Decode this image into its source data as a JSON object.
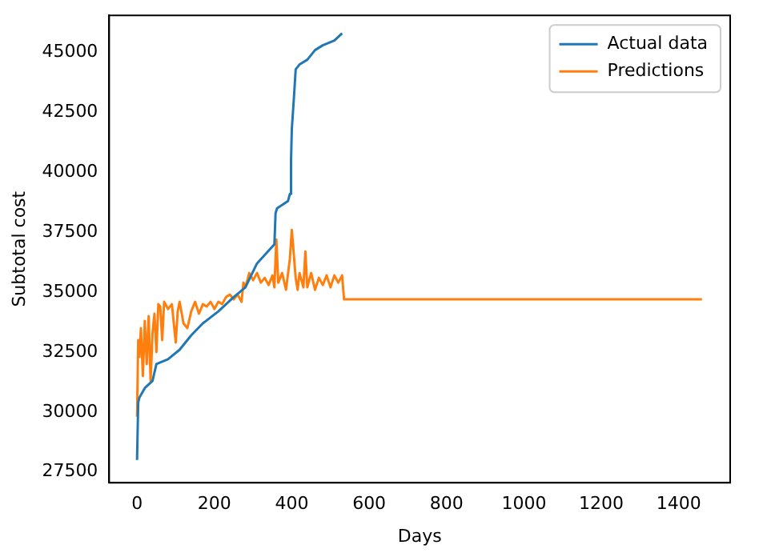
{
  "chart_data": {
    "type": "line",
    "xlabel": "Days",
    "ylabel": "Subtotal cost",
    "xlim": [
      -72,
      1533
    ],
    "ylim": [
      27050,
      46550
    ],
    "xticks": [
      0,
      200,
      400,
      600,
      800,
      1000,
      1200,
      1400
    ],
    "yticks": [
      27500,
      30000,
      32500,
      35000,
      37500,
      40000,
      42500,
      45000
    ],
    "legend": "top right",
    "marker": "none",
    "line_style": "solid",
    "grid": false,
    "series": [
      {
        "name": "Actual data",
        "color": "#1f77b4",
        "x": [
          0,
          3,
          6,
          20,
          40,
          50,
          80,
          110,
          140,
          170,
          210,
          250,
          280,
          310,
          355,
          358,
          362,
          390,
          395,
          398,
          400,
          405,
          410,
          420,
          440,
          460,
          480,
          510,
          530
        ],
        "values": [
          28000,
          30400,
          30600,
          31000,
          31300,
          32000,
          32200,
          32600,
          33200,
          33700,
          34200,
          34800,
          35200,
          36200,
          37000,
          38300,
          38500,
          38800,
          39100,
          40500,
          41800,
          43000,
          44300,
          44500,
          44700,
          45100,
          45300,
          45500,
          45800
        ]
      },
      {
        "name": "Predictions",
        "color": "#ff7f0e",
        "x": [
          0,
          3,
          6,
          10,
          15,
          20,
          25,
          30,
          35,
          40,
          45,
          50,
          55,
          60,
          65,
          70,
          80,
          90,
          100,
          105,
          110,
          120,
          130,
          140,
          150,
          160,
          170,
          180,
          190,
          200,
          210,
          220,
          230,
          240,
          250,
          260,
          270,
          275,
          280,
          290,
          300,
          310,
          320,
          330,
          340,
          350,
          355,
          360,
          365,
          375,
          385,
          395,
          400,
          405,
          410,
          415,
          420,
          430,
          435,
          440,
          450,
          460,
          470,
          480,
          490,
          500,
          510,
          520,
          530,
          535,
          1460
        ],
        "values": [
          29800,
          33000,
          32300,
          33500,
          31500,
          33800,
          32000,
          34000,
          31300,
          33300,
          34100,
          32500,
          34500,
          34400,
          33000,
          34600,
          34300,
          34500,
          32900,
          34200,
          34600,
          33700,
          33500,
          34200,
          34600,
          34100,
          34500,
          34400,
          34600,
          34300,
          34600,
          34500,
          34800,
          34900,
          34700,
          34900,
          34600,
          35400,
          35200,
          35800,
          35500,
          35800,
          35400,
          35600,
          35300,
          35700,
          35200,
          37200,
          35400,
          35800,
          35100,
          36400,
          37600,
          36600,
          35600,
          35100,
          35800,
          35200,
          36700,
          35200,
          35800,
          35100,
          35600,
          35300,
          35700,
          35200,
          35700,
          35400,
          35700,
          34700,
          34700
        ]
      }
    ]
  }
}
